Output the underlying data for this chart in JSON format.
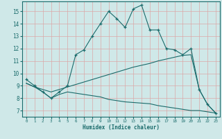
{
  "xlabel": "Humidex (Indice chaleur)",
  "bg_color": "#cfe8e8",
  "grid_color": "#dba8a8",
  "line_color": "#1a6b6b",
  "xlim": [
    -0.5,
    23.5
  ],
  "ylim": [
    6.5,
    15.8
  ],
  "yticks": [
    7,
    8,
    9,
    10,
    11,
    12,
    13,
    14,
    15
  ],
  "xticks": [
    0,
    1,
    2,
    3,
    4,
    5,
    6,
    7,
    8,
    9,
    10,
    11,
    12,
    13,
    14,
    15,
    16,
    17,
    18,
    19,
    20,
    21,
    22,
    23
  ],
  "series": {
    "line1_x": [
      0,
      1,
      2,
      3,
      4,
      5,
      6,
      7,
      8,
      9,
      10,
      11,
      12,
      13,
      14,
      15,
      16,
      17,
      18,
      19,
      20,
      21,
      22,
      23
    ],
    "line1_y": [
      9.5,
      9.0,
      8.5,
      8.0,
      8.5,
      9.0,
      11.5,
      11.9,
      13.0,
      14.0,
      15.0,
      14.4,
      13.7,
      15.2,
      15.5,
      13.5,
      13.5,
      12.0,
      11.9,
      11.5,
      12.0,
      8.7,
      7.5,
      6.8
    ],
    "line2_x": [
      0,
      1,
      2,
      3,
      4,
      5,
      6,
      7,
      8,
      9,
      10,
      11,
      12,
      13,
      14,
      15,
      16,
      17,
      18,
      19,
      20,
      21,
      22,
      23
    ],
    "line2_y": [
      9.2,
      8.9,
      8.7,
      8.5,
      8.7,
      8.9,
      9.1,
      9.3,
      9.5,
      9.7,
      9.9,
      10.1,
      10.3,
      10.5,
      10.65,
      10.8,
      11.0,
      11.15,
      11.3,
      11.45,
      11.5,
      8.7,
      7.5,
      6.8
    ],
    "line3_x": [
      0,
      1,
      2,
      3,
      4,
      5,
      6,
      7,
      8,
      9,
      10,
      11,
      12,
      13,
      14,
      15,
      16,
      17,
      18,
      19,
      20,
      21,
      22,
      23
    ],
    "line3_y": [
      9.2,
      8.9,
      8.5,
      8.0,
      8.3,
      8.5,
      8.4,
      8.3,
      8.2,
      8.1,
      7.9,
      7.8,
      7.7,
      7.65,
      7.6,
      7.55,
      7.4,
      7.3,
      7.2,
      7.1,
      7.0,
      7.0,
      6.9,
      6.8
    ]
  }
}
